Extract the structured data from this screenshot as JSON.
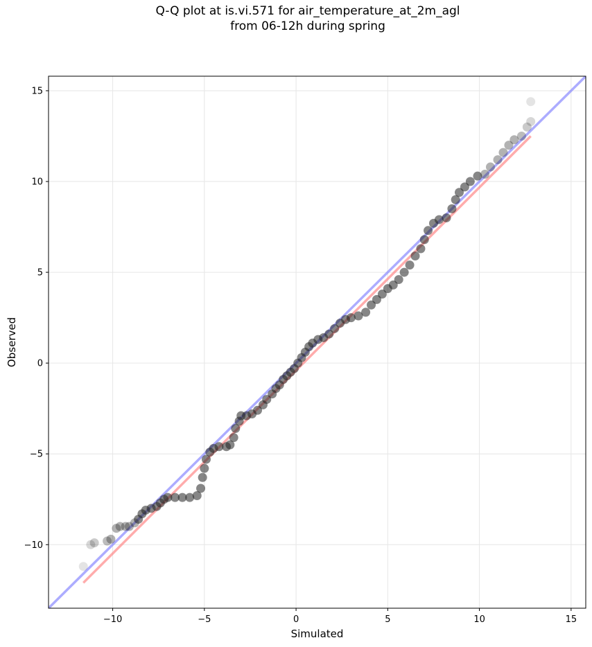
{
  "chart_data": {
    "type": "scatter",
    "title_line1": "Q-Q plot at is.vi.571 for air_temperature_at_2m_agl",
    "title_line2": "from 06-12h during spring",
    "xlabel": "Simulated",
    "ylabel": "Observed",
    "xlim": [
      -13.5,
      15.8
    ],
    "ylim": [
      -13.5,
      15.8
    ],
    "xticks": [
      -10,
      -5,
      0,
      5,
      10,
      15
    ],
    "yticks": [
      -10,
      -5,
      0,
      5,
      10,
      15
    ],
    "xtick_labels": [
      "−10",
      "−5",
      "0",
      "5",
      "10",
      "15"
    ],
    "ytick_labels": [
      "−10",
      "−5",
      "0",
      "5",
      "10",
      "15"
    ],
    "grid": true,
    "reference_lines": [
      {
        "kind": "identity",
        "color": "#7f7fff",
        "x": [
          -13.5,
          15.8
        ],
        "y": [
          -13.5,
          15.8
        ]
      },
      {
        "kind": "fit",
        "color": "#ff7f7f",
        "x": [
          -11.6,
          12.8
        ],
        "y": [
          -12.1,
          12.5
        ]
      }
    ],
    "quantile_points": [
      [
        -11.6,
        -11.2
      ],
      [
        -11.2,
        -10.0
      ],
      [
        -11.0,
        -9.9
      ],
      [
        -10.3,
        -9.8
      ],
      [
        -10.1,
        -9.7
      ],
      [
        -9.8,
        -9.1
      ],
      [
        -9.6,
        -9.0
      ],
      [
        -9.3,
        -9.0
      ],
      [
        -9.1,
        -9.0
      ],
      [
        -8.8,
        -8.8
      ],
      [
        -8.6,
        -8.6
      ],
      [
        -8.4,
        -8.3
      ],
      [
        -8.2,
        -8.1
      ],
      [
        -7.9,
        -8.0
      ],
      [
        -7.6,
        -7.9
      ],
      [
        -7.4,
        -7.7
      ],
      [
        -7.2,
        -7.5
      ],
      [
        -7.0,
        -7.4
      ],
      [
        -6.6,
        -7.4
      ],
      [
        -6.2,
        -7.4
      ],
      [
        -5.8,
        -7.4
      ],
      [
        -5.4,
        -7.3
      ],
      [
        -5.2,
        -6.9
      ],
      [
        -5.1,
        -6.3
      ],
      [
        -5.0,
        -5.8
      ],
      [
        -4.9,
        -5.3
      ],
      [
        -4.7,
        -4.9
      ],
      [
        -4.5,
        -4.7
      ],
      [
        -4.2,
        -4.6
      ],
      [
        -3.8,
        -4.6
      ],
      [
        -3.6,
        -4.5
      ],
      [
        -3.4,
        -4.1
      ],
      [
        -3.3,
        -3.6
      ],
      [
        -3.1,
        -3.2
      ],
      [
        -3.0,
        -2.9
      ],
      [
        -2.7,
        -2.9
      ],
      [
        -2.4,
        -2.8
      ],
      [
        -2.1,
        -2.6
      ],
      [
        -1.8,
        -2.3
      ],
      [
        -1.6,
        -2.0
      ],
      [
        -1.3,
        -1.7
      ],
      [
        -1.1,
        -1.4
      ],
      [
        -0.9,
        -1.2
      ],
      [
        -0.7,
        -0.9
      ],
      [
        -0.5,
        -0.7
      ],
      [
        -0.3,
        -0.5
      ],
      [
        -0.1,
        -0.3
      ],
      [
        0.1,
        0.0
      ],
      [
        0.3,
        0.3
      ],
      [
        0.5,
        0.6
      ],
      [
        0.7,
        0.9
      ],
      [
        0.9,
        1.1
      ],
      [
        1.2,
        1.3
      ],
      [
        1.5,
        1.4
      ],
      [
        1.8,
        1.6
      ],
      [
        2.1,
        1.9
      ],
      [
        2.4,
        2.2
      ],
      [
        2.7,
        2.4
      ],
      [
        3.0,
        2.5
      ],
      [
        3.4,
        2.6
      ],
      [
        3.8,
        2.8
      ],
      [
        4.1,
        3.2
      ],
      [
        4.4,
        3.5
      ],
      [
        4.7,
        3.8
      ],
      [
        5.0,
        4.1
      ],
      [
        5.3,
        4.3
      ],
      [
        5.6,
        4.6
      ],
      [
        5.9,
        5.0
      ],
      [
        6.2,
        5.4
      ],
      [
        6.5,
        5.9
      ],
      [
        6.8,
        6.3
      ],
      [
        7.0,
        6.8
      ],
      [
        7.2,
        7.3
      ],
      [
        7.5,
        7.7
      ],
      [
        7.8,
        7.9
      ],
      [
        8.2,
        8.0
      ],
      [
        8.5,
        8.5
      ],
      [
        8.7,
        9.0
      ],
      [
        8.9,
        9.4
      ],
      [
        9.2,
        9.7
      ],
      [
        9.5,
        10.0
      ],
      [
        9.9,
        10.3
      ],
      [
        10.3,
        10.4
      ],
      [
        10.6,
        10.8
      ],
      [
        11.0,
        11.2
      ],
      [
        11.3,
        11.6
      ],
      [
        11.6,
        12.0
      ],
      [
        11.9,
        12.3
      ],
      [
        12.3,
        12.5
      ],
      [
        12.6,
        13.0
      ],
      [
        12.8,
        13.3
      ],
      [
        12.8,
        14.4
      ]
    ]
  }
}
